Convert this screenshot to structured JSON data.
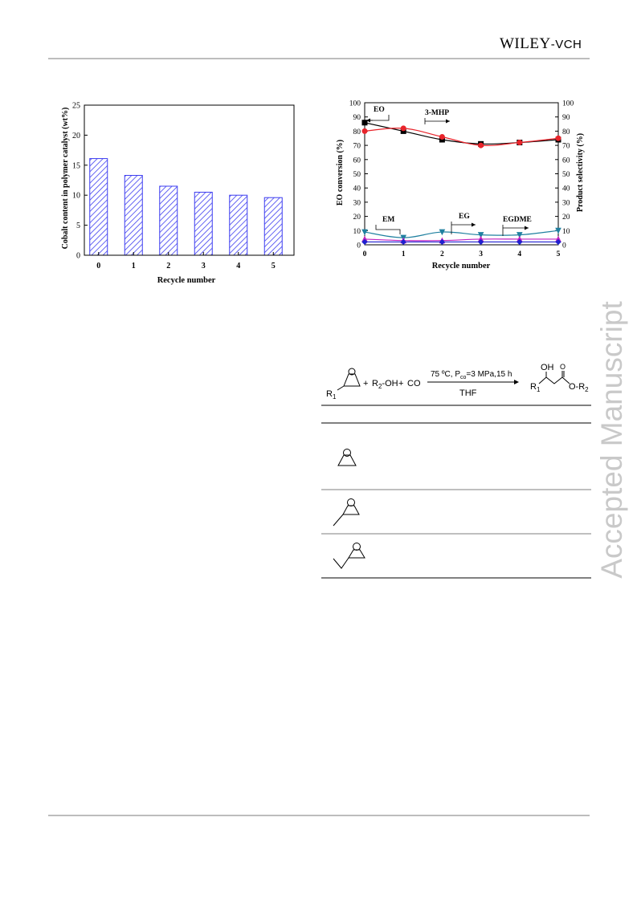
{
  "header": {
    "publisher": "WILEY",
    "publisher_suffix": "-VCH"
  },
  "watermark": "Accepted Manuscript",
  "chart_data": [
    {
      "type": "bar",
      "categories": [
        "0",
        "1",
        "2",
        "3",
        "4",
        "5"
      ],
      "values": [
        16.1,
        13.3,
        11.5,
        10.5,
        10.0,
        9.6
      ],
      "xlabel": "Recycle number",
      "ylabel": "Cobalt content in polymer catalyst (wt%)",
      "ylim": [
        0,
        25
      ],
      "yticks": [
        0,
        5,
        10,
        15,
        20,
        25
      ],
      "bar_color": "#3c3cf0",
      "bar_pattern": "hatched"
    },
    {
      "type": "line",
      "x": [
        0,
        1,
        2,
        3,
        4,
        5
      ],
      "xlabel": "Recycle number",
      "ylabel": "EO conversion (%)",
      "y2label": "Product selectivity (%)",
      "ylim": [
        0,
        100
      ],
      "y2lim": [
        0,
        100
      ],
      "yticks": [
        0,
        10,
        20,
        30,
        40,
        50,
        60,
        70,
        80,
        90,
        100
      ],
      "series": [
        {
          "name": "EO",
          "axis": "left",
          "color": "#000000",
          "marker": "square",
          "values": [
            86,
            80,
            74,
            71,
            72,
            74
          ]
        },
        {
          "name": "3-MHP",
          "axis": "right",
          "color": "#e8242b",
          "marker": "circle",
          "values": [
            80,
            82,
            76,
            70,
            72,
            75
          ]
        },
        {
          "name": "EM",
          "axis": "right",
          "color": "#2080a0",
          "marker": "triangle-down",
          "values": [
            9,
            5,
            9,
            7,
            7,
            10
          ]
        },
        {
          "name": "EG",
          "axis": "right",
          "color": "#c020c0",
          "marker": "triangle-up",
          "values": [
            4,
            3,
            3,
            4,
            4,
            4
          ]
        },
        {
          "name": "EGDME",
          "axis": "right",
          "color": "#2020d0",
          "marker": "diamond",
          "values": [
            2,
            2,
            2,
            2,
            2,
            2
          ]
        }
      ],
      "annotations": [
        "EO",
        "3-MHP",
        "EM",
        "EG",
        "EGDME"
      ]
    }
  ],
  "scheme": {
    "conditions_top": "75 ºC, P",
    "conditions_sub": "co",
    "conditions_rest": "=3 MPa,15 h",
    "solvent": "THF",
    "plus1": "+",
    "reagent_main": "R",
    "reagent_sub": "2",
    "reagent_suffix": "-OH",
    "plus2": "+",
    "co": "CO",
    "r1": "R",
    "r1_sub": "1",
    "product_oh": "OH",
    "product_r1": "R",
    "product_r1_sub": "1",
    "product_r2": "O-R",
    "product_r2_sub": "2"
  }
}
